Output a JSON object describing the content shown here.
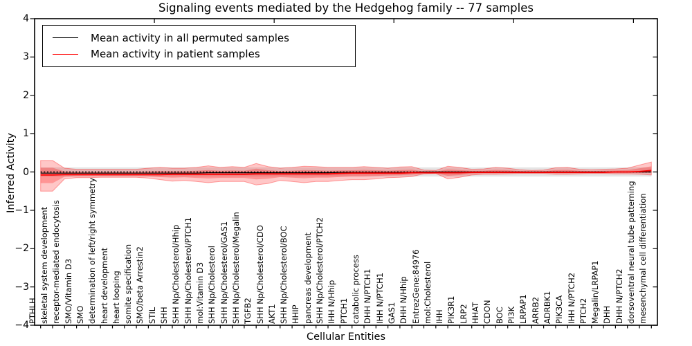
{
  "figure": {
    "title": "Signaling events mediated by the Hedgehog family -- 77 samples",
    "xlabel": "Cellular Entities",
    "ylabel": "Inferred Activity"
  },
  "legend": {
    "position": "upper left",
    "entries": [
      {
        "label": "Mean activity in all permuted samples",
        "color": "#000000"
      },
      {
        "label": "Mean activity in patient samples",
        "color": "#ff0000"
      }
    ]
  },
  "chart_data": {
    "type": "line",
    "title": "Signaling events mediated by the Hedgehog family -- 77 samples",
    "xlabel": "Cellular Entities",
    "ylabel": "Inferred Activity",
    "ylim": [
      -4,
      4
    ],
    "ytick_labels": [
      "4",
      "3",
      "2",
      "1",
      "0",
      "−1",
      "−2",
      "−3",
      "−4"
    ],
    "grid": false,
    "legend_position": "upper left",
    "zero_reference_line": {
      "y": 0,
      "style": "dotted",
      "color": "#000000"
    },
    "categories": [
      "PTHLH",
      "skeletal system development",
      "receptor-mediated endocytosis",
      "SMO/Vitamin D3",
      "SMO",
      "determination of left/right symmetry",
      "heart development",
      "heart looping",
      "somite specification",
      "SMO/beta Arrestin2",
      "STIL",
      "SHH",
      "SHH Np/Cholesterol/Hhip",
      "SHH Np/Cholesterol/PTCH1",
      "mol:Vitamin D3",
      "SHH Np/Cholesterol",
      "SHH Np/Cholesterol/GAS1",
      "SHH Np/Cholesterol/Megalin",
      "TGFB2",
      "SHH Np/Cholesterol/CDO",
      "AKT1",
      "SHH Np/Cholesterol/BOC",
      "HHIP",
      "pancreas development",
      "SHH Np/Cholesterol/PTCH2",
      "IHH N/Hhip",
      "PTCH1",
      "catabolic process",
      "DHH N/PTCH1",
      "IHH N/PTCH1",
      "GAS1",
      "DHH N/Hhip",
      "EntrezGene:84976",
      "mol:Cholesterol",
      "IHH",
      "PIK3R1",
      "LRP2",
      "HHAT",
      "CDON",
      "BOC",
      "PI3K",
      "LRPAP1",
      "ARRB2",
      "ADRBK1",
      "PIK3CA",
      "IHH N/PTCH2",
      "PTCH2",
      "Megalin/LRPAP1",
      "DHH",
      "DHH N/PTCH2",
      "dorsoventral neural tube patterning",
      "mesenchymal cell differentiation"
    ],
    "series": [
      {
        "name": "Mean activity in all permuted samples",
        "color": "#000000",
        "style": "solid",
        "values": [
          -0.03,
          -0.03,
          -0.03,
          -0.03,
          -0.03,
          -0.03,
          -0.03,
          -0.03,
          -0.03,
          -0.03,
          -0.03,
          -0.03,
          -0.03,
          -0.03,
          -0.02,
          -0.02,
          -0.02,
          -0.02,
          -0.02,
          -0.02,
          -0.02,
          -0.02,
          -0.02,
          -0.02,
          -0.02,
          -0.01,
          -0.01,
          -0.01,
          -0.01,
          -0.01,
          -0.01,
          -0.01,
          0,
          0,
          0,
          0,
          0,
          0,
          0,
          0,
          0,
          0,
          0,
          0,
          0,
          0,
          0,
          0,
          0,
          0,
          0,
          0
        ]
      },
      {
        "name": "Mean activity in patient samples",
        "color": "#ff0000",
        "style": "solid",
        "values": [
          -0.08,
          -0.08,
          -0.07,
          -0.07,
          -0.07,
          -0.07,
          -0.07,
          -0.07,
          -0.07,
          -0.07,
          -0.07,
          -0.06,
          -0.06,
          -0.06,
          -0.06,
          -0.06,
          -0.06,
          -0.06,
          -0.05,
          -0.05,
          -0.05,
          -0.05,
          -0.05,
          -0.05,
          -0.05,
          -0.04,
          -0.03,
          -0.03,
          -0.03,
          -0.03,
          -0.03,
          -0.02,
          -0.02,
          -0.02,
          -0.02,
          -0.02,
          -0.01,
          -0.01,
          -0.01,
          -0.01,
          -0.01,
          -0.01,
          -0.01,
          -0.01,
          -0.01,
          -0.01,
          -0.01,
          -0.01,
          0,
          0,
          0.01,
          0.04
        ]
      }
    ],
    "bands": [
      {
        "name": "permuted samples std band",
        "color": "#000000",
        "opacity": 0.1,
        "upper_constant": 0.12,
        "lower_constant": -0.12
      },
      {
        "name": "patient samples std band",
        "color": "#ff0000",
        "opacity": 0.22,
        "upper": [
          0.3,
          0.3,
          0.1,
          0.07,
          0.07,
          0.07,
          0.07,
          0.07,
          0.07,
          0.1,
          0.12,
          0.1,
          0.1,
          0.12,
          0.16,
          0.12,
          0.14,
          0.12,
          0.22,
          0.14,
          0.1,
          0.12,
          0.15,
          0.14,
          0.12,
          0.12,
          0.12,
          0.14,
          0.12,
          0.1,
          0.13,
          0.14,
          0.05,
          0.04,
          0.15,
          0.12,
          0.07,
          0.08,
          0.12,
          0.1,
          0.06,
          0.04,
          0.05,
          0.11,
          0.12,
          0.07,
          0.06,
          0.07,
          0.08,
          0.1,
          0.18,
          0.26
        ],
        "lower": [
          -0.5,
          -0.5,
          -0.18,
          -0.15,
          -0.15,
          -0.14,
          -0.14,
          -0.14,
          -0.14,
          -0.16,
          -0.2,
          -0.24,
          -0.22,
          -0.25,
          -0.28,
          -0.25,
          -0.25,
          -0.25,
          -0.34,
          -0.3,
          -0.22,
          -0.25,
          -0.28,
          -0.25,
          -0.25,
          -0.22,
          -0.2,
          -0.2,
          -0.18,
          -0.15,
          -0.14,
          -0.12,
          -0.05,
          -0.04,
          -0.18,
          -0.14,
          -0.08,
          -0.06,
          -0.06,
          -0.05,
          -0.04,
          -0.04,
          -0.04,
          -0.06,
          -0.06,
          -0.05,
          -0.04,
          -0.04,
          -0.05,
          -0.05,
          -0.06,
          -0.08
        ]
      }
    ]
  }
}
